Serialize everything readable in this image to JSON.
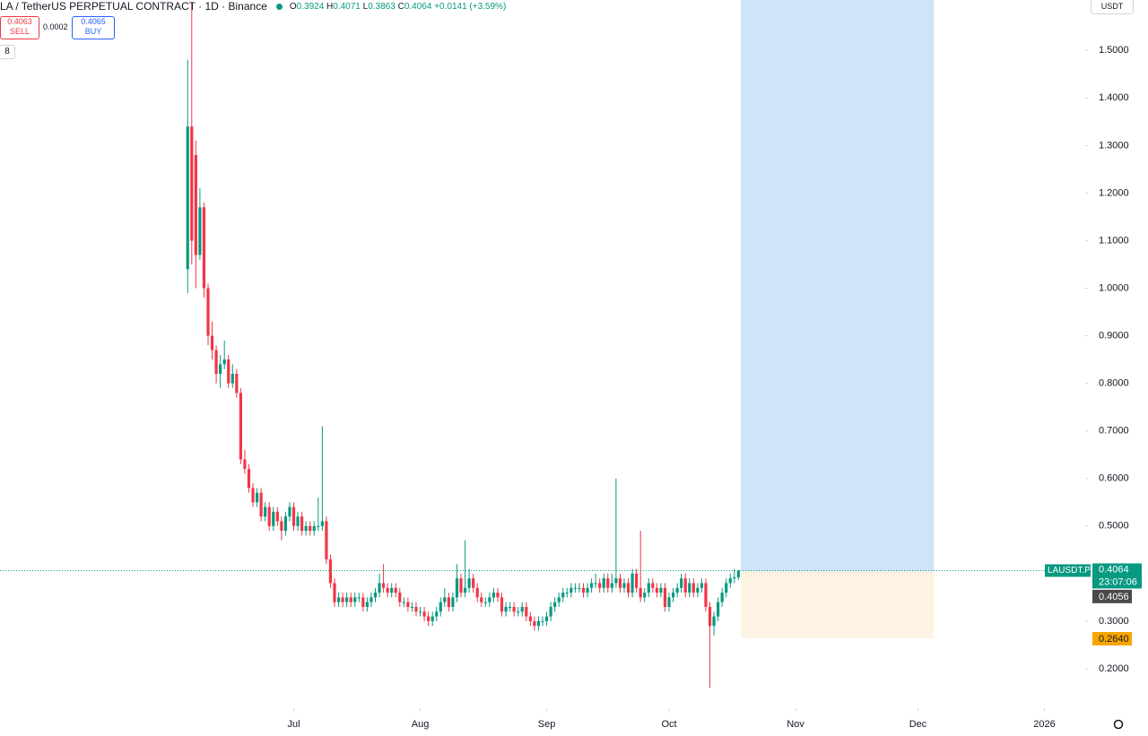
{
  "header": {
    "symbol": "LA / TetherUS PERPETUAL CONTRACT · 1D · Binance",
    "change": "+0.0141",
    "change_pct": "(+3.59%)",
    "sell_price": 0.4063,
    "sell_label": "SELL",
    "spread": 0.0002,
    "buy_price": 0.4065,
    "buy_label": "BUY",
    "indicator_count": "8",
    "currency": "USDT"
  },
  "chart_data": {
    "type": "candlestick",
    "up_color": "#089981",
    "down_color": "#f23645",
    "ohlc_labels": [
      "O",
      "H",
      "L",
      "C"
    ],
    "x": [
      0,
      1,
      2,
      3,
      4,
      5,
      6,
      7,
      8,
      9,
      10,
      11,
      12,
      13,
      14,
      15,
      16,
      17,
      18,
      19,
      20,
      21,
      22,
      23,
      24,
      25,
      26,
      27,
      28,
      29,
      30,
      31,
      32,
      33,
      34,
      35,
      36,
      37,
      38,
      39,
      40,
      41,
      42,
      43,
      44,
      45,
      46,
      47,
      48,
      49,
      50,
      51,
      52,
      53,
      54,
      55,
      56,
      57,
      58,
      59,
      60,
      61,
      62,
      63,
      64,
      65,
      66,
      67,
      68,
      69,
      70,
      71,
      72,
      73,
      74,
      75,
      76,
      77,
      78,
      79,
      80,
      81,
      82,
      83,
      84,
      85,
      86,
      87,
      88,
      89,
      90,
      91,
      92,
      93,
      94,
      95,
      96,
      97,
      98,
      99,
      100,
      101,
      102,
      103,
      104,
      105,
      106,
      107,
      108,
      109,
      110,
      111,
      112,
      113,
      114,
      115,
      116,
      117,
      118,
      119,
      120,
      121,
      122,
      123,
      124,
      125,
      126,
      127,
      128,
      129,
      130,
      131,
      132,
      133,
      134,
      135
    ],
    "ohlc": [
      [
        1.04,
        1.48,
        0.99,
        1.34
      ],
      [
        1.34,
        1.6,
        1.05,
        1.1
      ],
      [
        1.28,
        1.31,
        1.0,
        1.07
      ],
      [
        1.07,
        1.21,
        1.06,
        1.17
      ],
      [
        1.17,
        1.18,
        0.98,
        1.0
      ],
      [
        1.0,
        1.01,
        0.88,
        0.9
      ],
      [
        0.9,
        0.93,
        0.85,
        0.87
      ],
      [
        0.87,
        0.88,
        0.8,
        0.82
      ],
      [
        0.82,
        0.86,
        0.79,
        0.84
      ],
      [
        0.84,
        0.89,
        0.83,
        0.85
      ],
      [
        0.85,
        0.86,
        0.79,
        0.8
      ],
      [
        0.8,
        0.84,
        0.79,
        0.82
      ],
      [
        0.82,
        0.83,
        0.77,
        0.78
      ],
      [
        0.78,
        0.79,
        0.63,
        0.64
      ],
      [
        0.64,
        0.66,
        0.61,
        0.62
      ],
      [
        0.62,
        0.63,
        0.57,
        0.58
      ],
      [
        0.58,
        0.59,
        0.54,
        0.55
      ],
      [
        0.55,
        0.58,
        0.54,
        0.57
      ],
      [
        0.57,
        0.58,
        0.51,
        0.52
      ],
      [
        0.52,
        0.55,
        0.51,
        0.54
      ],
      [
        0.54,
        0.55,
        0.49,
        0.5
      ],
      [
        0.5,
        0.54,
        0.49,
        0.53
      ],
      [
        0.53,
        0.54,
        0.5,
        0.51
      ],
      [
        0.51,
        0.52,
        0.47,
        0.49
      ],
      [
        0.49,
        0.53,
        0.48,
        0.52
      ],
      [
        0.52,
        0.55,
        0.51,
        0.54
      ],
      [
        0.54,
        0.55,
        0.49,
        0.5
      ],
      [
        0.5,
        0.53,
        0.49,
        0.52
      ],
      [
        0.52,
        0.53,
        0.48,
        0.49
      ],
      [
        0.49,
        0.51,
        0.48,
        0.5
      ],
      [
        0.5,
        0.51,
        0.48,
        0.49
      ],
      [
        0.49,
        0.51,
        0.48,
        0.5
      ],
      [
        0.5,
        0.56,
        0.49,
        0.5
      ],
      [
        0.5,
        0.71,
        0.49,
        0.51
      ],
      [
        0.51,
        0.52,
        0.42,
        0.43
      ],
      [
        0.43,
        0.44,
        0.37,
        0.38
      ],
      [
        0.38,
        0.39,
        0.33,
        0.34
      ],
      [
        0.34,
        0.36,
        0.33,
        0.35
      ],
      [
        0.35,
        0.36,
        0.33,
        0.34
      ],
      [
        0.34,
        0.36,
        0.33,
        0.35
      ],
      [
        0.35,
        0.36,
        0.33,
        0.34
      ],
      [
        0.34,
        0.36,
        0.33,
        0.35
      ],
      [
        0.35,
        0.36,
        0.34,
        0.35
      ],
      [
        0.35,
        0.36,
        0.32,
        0.33
      ],
      [
        0.33,
        0.35,
        0.32,
        0.34
      ],
      [
        0.34,
        0.36,
        0.33,
        0.35
      ],
      [
        0.35,
        0.37,
        0.34,
        0.36
      ],
      [
        0.36,
        0.4,
        0.35,
        0.38
      ],
      [
        0.38,
        0.42,
        0.36,
        0.37
      ],
      [
        0.37,
        0.38,
        0.35,
        0.36
      ],
      [
        0.36,
        0.38,
        0.35,
        0.37
      ],
      [
        0.37,
        0.38,
        0.35,
        0.36
      ],
      [
        0.36,
        0.37,
        0.33,
        0.34
      ],
      [
        0.34,
        0.35,
        0.33,
        0.34
      ],
      [
        0.34,
        0.35,
        0.32,
        0.33
      ],
      [
        0.33,
        0.34,
        0.32,
        0.33
      ],
      [
        0.33,
        0.34,
        0.31,
        0.32
      ],
      [
        0.32,
        0.33,
        0.31,
        0.32
      ],
      [
        0.32,
        0.33,
        0.3,
        0.31
      ],
      [
        0.31,
        0.32,
        0.29,
        0.3
      ],
      [
        0.3,
        0.32,
        0.29,
        0.31
      ],
      [
        0.31,
        0.33,
        0.3,
        0.32
      ],
      [
        0.32,
        0.35,
        0.31,
        0.34
      ],
      [
        0.34,
        0.37,
        0.33,
        0.35
      ],
      [
        0.35,
        0.36,
        0.32,
        0.33
      ],
      [
        0.33,
        0.36,
        0.32,
        0.35
      ],
      [
        0.35,
        0.42,
        0.34,
        0.39
      ],
      [
        0.39,
        0.4,
        0.35,
        0.36
      ],
      [
        0.36,
        0.47,
        0.35,
        0.37
      ],
      [
        0.37,
        0.41,
        0.36,
        0.39
      ],
      [
        0.39,
        0.4,
        0.36,
        0.37
      ],
      [
        0.37,
        0.38,
        0.34,
        0.35
      ],
      [
        0.35,
        0.36,
        0.33,
        0.34
      ],
      [
        0.34,
        0.35,
        0.33,
        0.34
      ],
      [
        0.34,
        0.36,
        0.33,
        0.35
      ],
      [
        0.35,
        0.37,
        0.34,
        0.36
      ],
      [
        0.36,
        0.37,
        0.34,
        0.35
      ],
      [
        0.35,
        0.36,
        0.31,
        0.32
      ],
      [
        0.32,
        0.34,
        0.31,
        0.33
      ],
      [
        0.33,
        0.34,
        0.32,
        0.33
      ],
      [
        0.33,
        0.34,
        0.31,
        0.32
      ],
      [
        0.32,
        0.33,
        0.31,
        0.32
      ],
      [
        0.32,
        0.34,
        0.31,
        0.33
      ],
      [
        0.33,
        0.34,
        0.3,
        0.31
      ],
      [
        0.31,
        0.32,
        0.29,
        0.3
      ],
      [
        0.3,
        0.31,
        0.28,
        0.29
      ],
      [
        0.29,
        0.31,
        0.28,
        0.3
      ],
      [
        0.3,
        0.31,
        0.29,
        0.3
      ],
      [
        0.3,
        0.32,
        0.29,
        0.31
      ],
      [
        0.31,
        0.34,
        0.3,
        0.33
      ],
      [
        0.33,
        0.35,
        0.32,
        0.34
      ],
      [
        0.34,
        0.36,
        0.33,
        0.35
      ],
      [
        0.35,
        0.37,
        0.34,
        0.36
      ],
      [
        0.36,
        0.37,
        0.35,
        0.36
      ],
      [
        0.36,
        0.38,
        0.35,
        0.37
      ],
      [
        0.37,
        0.38,
        0.36,
        0.37
      ],
      [
        0.37,
        0.38,
        0.36,
        0.37
      ],
      [
        0.37,
        0.38,
        0.35,
        0.36
      ],
      [
        0.36,
        0.38,
        0.35,
        0.37
      ],
      [
        0.37,
        0.39,
        0.36,
        0.38
      ],
      [
        0.38,
        0.4,
        0.37,
        0.38
      ],
      [
        0.38,
        0.39,
        0.36,
        0.37
      ],
      [
        0.37,
        0.4,
        0.36,
        0.39
      ],
      [
        0.39,
        0.4,
        0.36,
        0.37
      ],
      [
        0.37,
        0.4,
        0.36,
        0.38
      ],
      [
        0.38,
        0.6,
        0.37,
        0.39
      ],
      [
        0.39,
        0.4,
        0.36,
        0.37
      ],
      [
        0.37,
        0.39,
        0.36,
        0.38
      ],
      [
        0.38,
        0.39,
        0.35,
        0.36
      ],
      [
        0.36,
        0.41,
        0.35,
        0.4
      ],
      [
        0.4,
        0.41,
        0.36,
        0.37
      ],
      [
        0.37,
        0.49,
        0.34,
        0.35
      ],
      [
        0.35,
        0.37,
        0.34,
        0.36
      ],
      [
        0.36,
        0.39,
        0.35,
        0.38
      ],
      [
        0.38,
        0.39,
        0.36,
        0.37
      ],
      [
        0.37,
        0.38,
        0.35,
        0.36
      ],
      [
        0.36,
        0.38,
        0.35,
        0.37
      ],
      [
        0.37,
        0.38,
        0.32,
        0.33
      ],
      [
        0.33,
        0.36,
        0.32,
        0.35
      ],
      [
        0.35,
        0.37,
        0.34,
        0.36
      ],
      [
        0.36,
        0.38,
        0.35,
        0.37
      ],
      [
        0.37,
        0.4,
        0.36,
        0.39
      ],
      [
        0.39,
        0.4,
        0.35,
        0.36
      ],
      [
        0.36,
        0.39,
        0.35,
        0.38
      ],
      [
        0.38,
        0.39,
        0.35,
        0.36
      ],
      [
        0.36,
        0.38,
        0.35,
        0.37
      ],
      [
        0.37,
        0.39,
        0.36,
        0.38
      ],
      [
        0.38,
        0.39,
        0.32,
        0.33
      ],
      [
        0.33,
        0.34,
        0.16,
        0.29
      ],
      [
        0.29,
        0.32,
        0.27,
        0.31
      ],
      [
        0.31,
        0.35,
        0.3,
        0.34
      ],
      [
        0.34,
        0.37,
        0.33,
        0.36
      ],
      [
        0.36,
        0.39,
        0.35,
        0.38
      ],
      [
        0.38,
        0.4,
        0.37,
        0.39
      ],
      [
        0.39,
        0.41,
        0.38,
        0.3924
      ],
      [
        0.3924,
        0.4071,
        0.3863,
        0.4064
      ]
    ],
    "xlim": [
      -46,
      220
    ],
    "xticks": [
      {
        "value": 26,
        "label": "Jul"
      },
      {
        "value": 57,
        "label": "Aug"
      },
      {
        "value": 88,
        "label": "Sep"
      },
      {
        "value": 118,
        "label": "Oct"
      },
      {
        "value": 149,
        "label": "Nov"
      },
      {
        "value": 179,
        "label": "Dec"
      },
      {
        "value": 210,
        "label": "2026"
      }
    ],
    "ylim": [
      0.117,
      1.606
    ],
    "yticks": [
      {
        "value": 0.2,
        "label": "0.2000"
      },
      {
        "value": 0.3,
        "label": "0.3000"
      },
      {
        "value": 0.4,
        "label": "0.4000"
      },
      {
        "value": 0.5,
        "label": "0.5000"
      },
      {
        "value": 0.6,
        "label": "0.6000"
      },
      {
        "value": 0.7,
        "label": "0.7000"
      },
      {
        "value": 0.8,
        "label": "0.8000"
      },
      {
        "value": 0.9,
        "label": "0.9000"
      },
      {
        "value": 1.0,
        "label": "1.0000"
      },
      {
        "value": 1.1,
        "label": "1.1000"
      },
      {
        "value": 1.2,
        "label": "1.2000"
      },
      {
        "value": 1.3,
        "label": "1.3000"
      },
      {
        "value": 1.4,
        "label": "1.4000"
      },
      {
        "value": 1.5,
        "label": "1.5000"
      }
    ],
    "symbol_tag": "LAUSDT.P",
    "countdown": "23:07:06",
    "position": {
      "start": 135.6,
      "end": 182.9,
      "entry": 0.4056,
      "stop": {
        "value": 0.264,
        "label": "0.2640"
      },
      "profit_color": "#cfe3fb",
      "loss_color": "#fcf3e2"
    }
  }
}
